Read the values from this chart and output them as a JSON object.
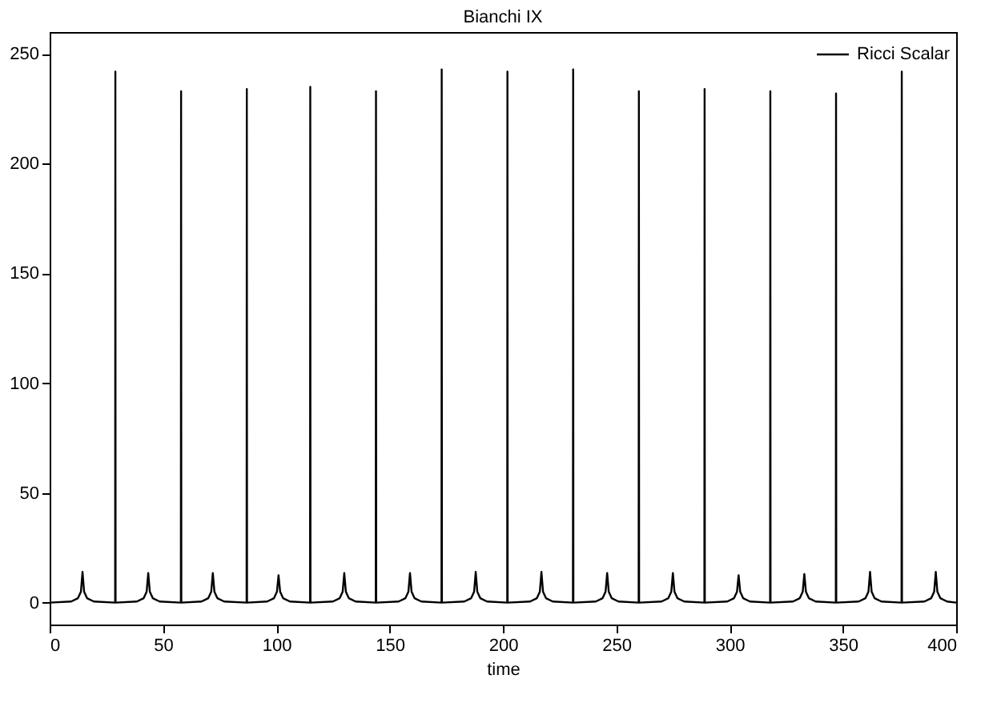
{
  "chart_data": {
    "type": "line",
    "title": "Bianchi IX",
    "xlabel": "time",
    "xlim": [
      0,
      400
    ],
    "xticks": [
      0,
      50,
      100,
      150,
      200,
      250,
      300,
      350,
      400
    ],
    "ylim": [
      -10,
      260
    ],
    "yticks": [
      0,
      50,
      100,
      150,
      200,
      250
    ],
    "grid": false,
    "legend": "top right",
    "marker": "none",
    "line_style": "solid",
    "series": [
      {
        "name": "Ricci Scalar",
        "color": "#000000",
        "x": [
          0,
          9.5,
          12.5,
          13.8,
          14.5,
          15.2,
          16.5,
          19.5,
          28.9,
          29,
          29.1,
          38.5,
          41.5,
          42.8,
          43.5,
          44.2,
          45.5,
          48.5,
          57.9,
          58,
          58.1,
          67,
          70,
          71.3,
          72,
          72.7,
          74,
          77,
          86.9,
          87,
          87.1,
          96,
          99,
          100.3,
          101,
          101.7,
          103,
          106,
          114.9,
          115,
          115.1,
          125,
          128,
          129.3,
          130,
          130.7,
          132,
          135,
          143.9,
          144,
          144.1,
          154,
          157,
          158.3,
          159,
          159.7,
          161,
          164,
          172.9,
          173,
          173.1,
          183,
          186,
          187.3,
          188,
          188.7,
          190,
          193,
          201.9,
          202,
          202.1,
          212,
          215,
          216.3,
          217,
          217.7,
          219,
          222,
          230.9,
          231,
          231.1,
          241,
          244,
          245.3,
          246,
          246.7,
          248,
          251,
          259.9,
          260,
          260.1,
          270,
          273,
          274.3,
          275,
          275.7,
          277,
          280,
          288.9,
          289,
          289.1,
          299,
          302,
          303.3,
          304,
          304.7,
          306,
          309,
          317.9,
          318,
          318.1,
          328,
          331,
          332.3,
          333,
          333.7,
          335,
          338,
          346.9,
          347,
          347.1,
          357,
          360,
          361.3,
          362,
          362.7,
          364,
          367,
          375.9,
          376,
          376.1,
          386,
          389,
          390.3,
          391,
          391.7,
          393,
          396,
          400
        ],
        "values": [
          0,
          0.5,
          2,
          5,
          14,
          5,
          2,
          0.5,
          0,
          242,
          0,
          0.5,
          2,
          5,
          13.5,
          5,
          2,
          0.5,
          0,
          233,
          0,
          0.5,
          2,
          5,
          13.5,
          5,
          2,
          0.5,
          0,
          234,
          0,
          0.5,
          2,
          5,
          12.5,
          5,
          2,
          0.5,
          0,
          235,
          0,
          0.5,
          2,
          5,
          13.5,
          5,
          2,
          0.5,
          0,
          233,
          0,
          0.5,
          2,
          5,
          13.5,
          5,
          2,
          0.5,
          0,
          243,
          0,
          0.5,
          2,
          5,
          14,
          5,
          2,
          0.5,
          0,
          242,
          0,
          0.5,
          2,
          5,
          14,
          5,
          2,
          0.5,
          0,
          243,
          0,
          0.5,
          2,
          5,
          13.5,
          5,
          2,
          0.5,
          0,
          233,
          0,
          0.5,
          2,
          5,
          13.5,
          5,
          2,
          0.5,
          0,
          234,
          0,
          0.5,
          2,
          5,
          12.5,
          5,
          2,
          0.5,
          0,
          233,
          0,
          0.5,
          2,
          5,
          13,
          5,
          2,
          0.5,
          0,
          232,
          0,
          0.5,
          2,
          5,
          14,
          5,
          2,
          0.5,
          0,
          242,
          0,
          0.5,
          2,
          5,
          14,
          5,
          2,
          0.5,
          0
        ]
      }
    ]
  }
}
